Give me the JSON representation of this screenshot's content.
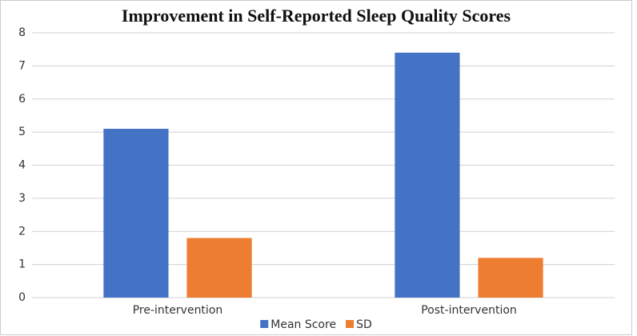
{
  "chart_data": {
    "type": "bar",
    "title": "Improvement in Self-Reported Sleep Quality Scores",
    "categories": [
      "Pre-intervention",
      "Post-intervention"
    ],
    "series": [
      {
        "name": "Mean Score",
        "color": "#4472c4",
        "values": [
          5.1,
          7.4
        ]
      },
      {
        "name": "SD",
        "color": "#ed7d31",
        "values": [
          1.8,
          1.2
        ]
      }
    ],
    "ylim": [
      0,
      8
    ],
    "yticks": [
      0,
      1,
      2,
      3,
      4,
      5,
      6,
      7,
      8
    ],
    "grid": true,
    "legend": "bottom"
  }
}
